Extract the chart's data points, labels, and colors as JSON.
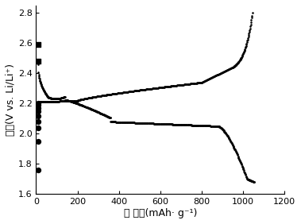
{
  "title": "",
  "xlabel": "比 容量(mAh· g⁻¹)",
  "ylabel": "电势(V vs. Li/Li⁺)",
  "xlim": [
    0,
    1200
  ],
  "ylim": [
    1.6,
    2.85
  ],
  "xticks": [
    0,
    200,
    400,
    600,
    800,
    1000,
    1200
  ],
  "yticks": [
    1.6,
    1.8,
    2.0,
    2.2,
    2.4,
    2.6,
    2.8
  ],
  "background_color": "#ffffff",
  "line_color": "#000000",
  "figsize": [
    3.79,
    2.82
  ],
  "dpi": 100
}
